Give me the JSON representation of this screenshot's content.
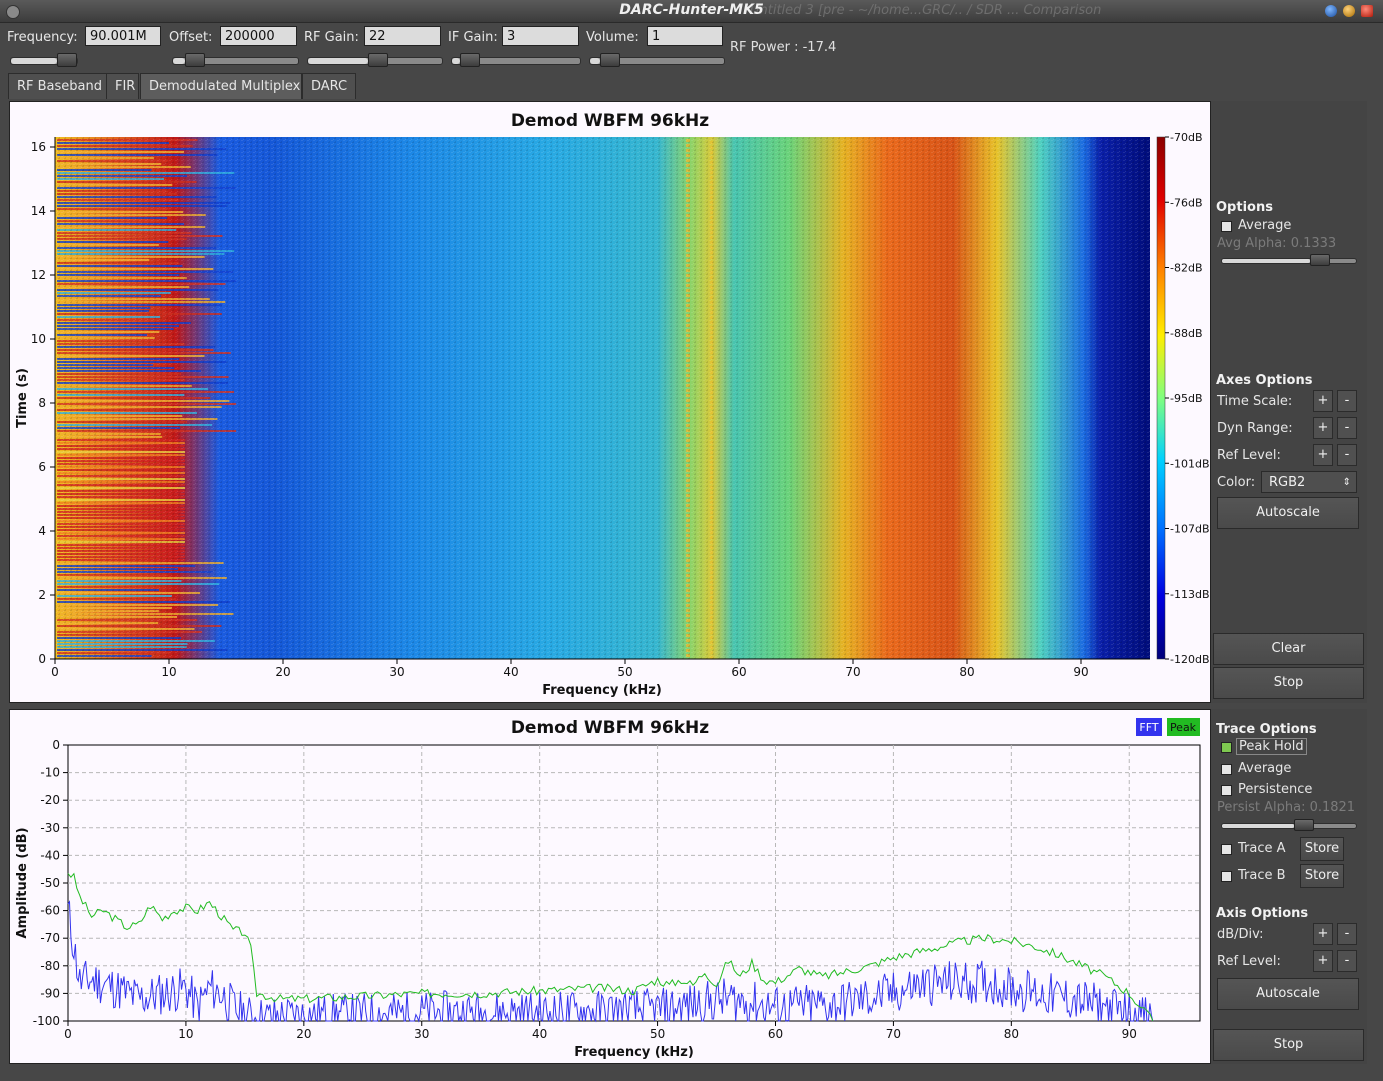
{
  "window": {
    "title": "DARC-Hunter-MK5",
    "background_title": "Untitled 3 [pre - ~/home...GRC/.. / SDR ... Comparison"
  },
  "controls": [
    {
      "label": "Frequency:",
      "value": "90.001M"
    },
    {
      "label": "Offset:",
      "value": "200000"
    },
    {
      "label": "RF Gain:",
      "value": "22"
    },
    {
      "label": "IF Gain:",
      "value": "3"
    },
    {
      "label": "Volume:",
      "value": "1"
    }
  ],
  "rf_power": {
    "label": "RF Power :",
    "value": "-17.4"
  },
  "tabs": [
    {
      "label": "RF Baseband",
      "active": false
    },
    {
      "label": "FIR",
      "active": false
    },
    {
      "label": "Demodulated Multiplex",
      "active": true
    },
    {
      "label": "DARC",
      "active": false
    }
  ],
  "waterfall": {
    "title": "Demod WBFM 96kHz",
    "xlabel": "Frequency (kHz)",
    "ylabel": "Time (s)",
    "xticks": [
      "0",
      "10",
      "20",
      "30",
      "40",
      "50",
      "60",
      "70",
      "80",
      "90"
    ],
    "yticks": [
      "0",
      "2",
      "4",
      "6",
      "8",
      "10",
      "12",
      "14",
      "16"
    ],
    "colorbar_ticks": [
      "-70dB",
      "-76dB",
      "-82dB",
      "-88dB",
      "-95dB",
      "-101dB",
      "-107dB",
      "-113dB",
      "-120dB"
    ],
    "color_map": "RGB2"
  },
  "waterfall_side": {
    "options_title": "Options",
    "average_label": "Average",
    "avg_alpha_label": "Avg Alpha:",
    "avg_alpha_value": "0.1333",
    "axes_options_title": "Axes Options",
    "time_scale_label": "Time Scale:",
    "dyn_range_label": "Dyn Range:",
    "ref_level_label": "Ref Level:",
    "color_label": "Color:",
    "color_value": "RGB2",
    "plus": "+",
    "minus": "-",
    "autoscale_label": "Autoscale",
    "clear_label": "Clear",
    "stop_label": "Stop"
  },
  "spectrum": {
    "title": "Demod WBFM 96kHz",
    "xlabel": "Frequency (kHz)",
    "ylabel": "Amplitude (dB)",
    "xticks": [
      "0",
      "10",
      "20",
      "30",
      "40",
      "50",
      "60",
      "70",
      "80",
      "90"
    ],
    "yticks": [
      "0",
      "-10",
      "-20",
      "-30",
      "-40",
      "-50",
      "-60",
      "-70",
      "-80",
      "-90",
      "-100"
    ],
    "legend": [
      {
        "name": "FFT",
        "color": "#3333ee"
      },
      {
        "name": "Peak",
        "color": "#22bb22"
      }
    ]
  },
  "spectrum_side": {
    "trace_options_title": "Trace Options",
    "peak_hold_label": "Peak Hold",
    "average_label": "Average",
    "persistence_label": "Persistence",
    "persist_alpha_label": "Persist Alpha:",
    "persist_alpha_value": "0.1821",
    "trace_a_label": "Trace A",
    "trace_b_label": "Trace B",
    "store_label": "Store",
    "axis_options_title": "Axis Options",
    "db_div_label": "dB/Div:",
    "ref_level_label": "Ref Level:",
    "plus": "+",
    "minus": "-",
    "autoscale_label": "Autoscale",
    "stop_label": "Stop"
  },
  "chart_data": {
    "type": "line",
    "title": "Demod WBFM 96kHz",
    "xlabel": "Frequency (kHz)",
    "ylabel": "Amplitude (dB)",
    "xlim": [
      0,
      96
    ],
    "ylim": [
      -100,
      0
    ],
    "series": [
      {
        "name": "Peak",
        "x": [
          0,
          0.5,
          1,
          2,
          3,
          4,
          5,
          6,
          7,
          8,
          9,
          10,
          11,
          12,
          13,
          14,
          15,
          15.5,
          16,
          18,
          20,
          25,
          30,
          35,
          40,
          45,
          48,
          50,
          51,
          52,
          53,
          54,
          55,
          56,
          57,
          58,
          59,
          60,
          62,
          64,
          66,
          68,
          70,
          72,
          74,
          76,
          78,
          80,
          82,
          84,
          86,
          88,
          90,
          91,
          92
        ],
        "y": [
          -46,
          -48,
          -55,
          -62,
          -60,
          -63,
          -66,
          -65,
          -58,
          -63,
          -60,
          -59,
          -60,
          -57,
          -62,
          -67,
          -68,
          -74,
          -90,
          -92,
          -92,
          -91,
          -90,
          -90,
          -89,
          -88,
          -89,
          -85,
          -87,
          -85,
          -87,
          -82,
          -87,
          -78,
          -84,
          -79,
          -85,
          -86,
          -81,
          -84,
          -82,
          -80,
          -77,
          -75,
          -73,
          -71,
          -70,
          -71,
          -73,
          -76,
          -80,
          -84,
          -90,
          -95,
          -100
        ]
      },
      {
        "name": "FFT",
        "x": [
          0,
          1,
          2,
          4,
          6,
          8,
          10,
          11,
          12,
          13,
          14,
          15,
          16,
          20,
          30,
          40,
          50,
          56,
          60,
          65,
          70,
          72,
          75,
          78,
          80,
          85,
          90,
          92
        ],
        "y": [
          -60,
          -86,
          -85,
          -88,
          -92,
          -90,
          -88,
          -95,
          -88,
          -90,
          -95,
          -98,
          -99,
          -98,
          -97,
          -97,
          -96,
          -92,
          -95,
          -94,
          -90,
          -87,
          -86,
          -86,
          -88,
          -92,
          -97,
          -100
        ]
      }
    ]
  }
}
